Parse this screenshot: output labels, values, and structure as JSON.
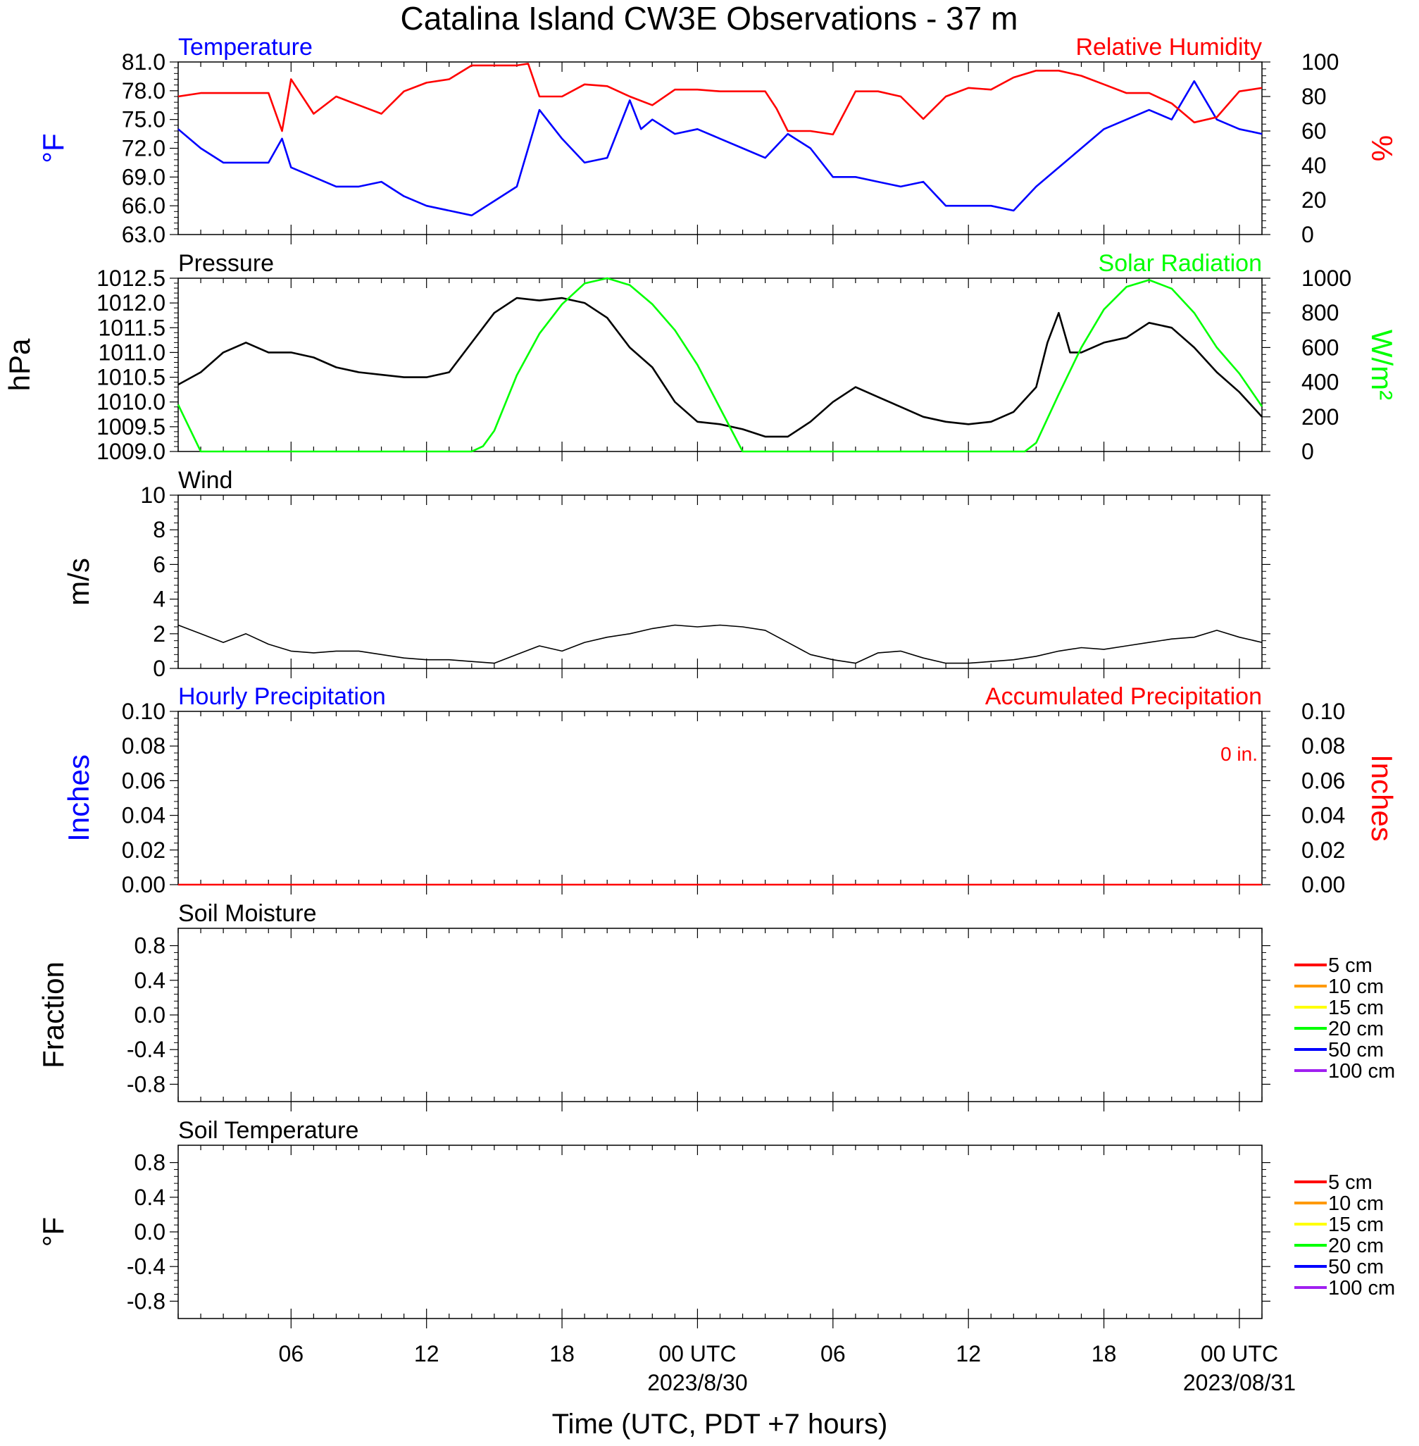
{
  "page_title": "Catalina Island CW3E Observations - 37 m",
  "x_axis": {
    "label": "Time (UTC, PDT +7 hours)",
    "tick_labels": [
      "06",
      "12",
      "18",
      "00 UTC",
      "06",
      "12",
      "18",
      "00 UTC"
    ],
    "tick_hours": [
      6,
      12,
      18,
      24,
      30,
      36,
      42,
      48
    ],
    "date_labels": [
      {
        "hour": 24,
        "text": "2023/8/30"
      },
      {
        "hour": 48,
        "text": "2023/08/31"
      }
    ],
    "range_hours": [
      1,
      49
    ],
    "start_time_utc": "2023-08-29 01:00"
  },
  "colors": {
    "blue": "#0000ff",
    "red": "#ff0000",
    "green": "#00ff00",
    "black": "#000000",
    "orange": "#ff9900",
    "yellow": "#ffff00",
    "purple": "#a020f0"
  },
  "chart_data": [
    {
      "type": "line",
      "id": "temperature-humidity",
      "title_left": "Temperature",
      "title_right": "Relative Humidity",
      "ylabel_left": "°F",
      "ylabel_right": "%",
      "ylim_left": [
        63,
        81
      ],
      "ylim_right": [
        0,
        100
      ],
      "yticks_left": [
        "81.0",
        "78.0",
        "75.0",
        "72.0",
        "69.0",
        "66.0",
        "63.0"
      ],
      "yticks_right": [
        "100",
        "80",
        "60",
        "40",
        "20",
        "0"
      ],
      "series": [
        {
          "name": "Temperature",
          "axis": "left",
          "color": "#0000ff",
          "x": [
            1,
            2,
            3,
            4,
            5,
            5.6,
            6,
            7,
            8,
            9,
            10,
            11,
            12,
            13,
            14,
            15,
            16,
            16.5,
            17,
            18,
            19,
            20,
            21,
            21.5,
            22,
            23,
            24,
            25,
            26,
            27,
            28,
            29,
            30,
            31,
            32,
            33,
            34,
            35,
            36,
            37,
            38,
            39,
            40,
            41,
            42,
            43,
            44,
            45,
            46,
            47,
            48,
            49
          ],
          "y": [
            74,
            72,
            70.5,
            70.5,
            70.5,
            73,
            70,
            69,
            68,
            68,
            68.5,
            67,
            66,
            65.5,
            65,
            66.5,
            68,
            72,
            76,
            73,
            70.5,
            71,
            77,
            74,
            75,
            73.5,
            74,
            73,
            72,
            71,
            73.5,
            72,
            69,
            69,
            68.5,
            68,
            68.5,
            66,
            66,
            66,
            65.5,
            68,
            70,
            72,
            74,
            75,
            76,
            75,
            79,
            75,
            74,
            73.5
          ]
        },
        {
          "name": "Relative Humidity",
          "axis": "right",
          "color": "#ff0000",
          "x": [
            1,
            2,
            3,
            4,
            5,
            5.6,
            6,
            7,
            8,
            9,
            10,
            11,
            12,
            13,
            14,
            15,
            16,
            16.5,
            17,
            18,
            19,
            20,
            21,
            22,
            23,
            24,
            25,
            26,
            27,
            27.5,
            28,
            29,
            30,
            31,
            32,
            33,
            34,
            35,
            36,
            37,
            38,
            39,
            40,
            41,
            42,
            43,
            44,
            45,
            46,
            47,
            48,
            49
          ],
          "y": [
            80,
            82,
            82,
            82,
            82,
            60,
            90,
            70,
            80,
            75,
            70,
            83,
            88,
            90,
            98,
            98,
            98,
            99,
            80,
            80,
            87,
            86,
            80,
            75,
            84,
            84,
            83,
            83,
            83,
            73,
            60,
            60,
            58,
            83,
            83,
            80,
            67,
            80,
            85,
            84,
            91,
            95,
            95,
            92,
            87,
            82,
            82,
            76,
            65,
            68,
            83,
            85
          ]
        }
      ]
    },
    {
      "type": "line",
      "id": "pressure-solar",
      "title_left": "Pressure",
      "title_right": "Solar Radiation",
      "ylabel_left": "hPa",
      "ylabel_right": "W/m²",
      "ylim_left": [
        1009,
        1012.5
      ],
      "ylim_right": [
        0,
        1000
      ],
      "yticks_left": [
        "1012.5",
        "1012.0",
        "1011.5",
        "1011.0",
        "1010.5",
        "1010.0",
        "1009.5",
        "1009.0"
      ],
      "yticks_right": [
        "1000",
        "800",
        "600",
        "400",
        "200",
        "0"
      ],
      "series": [
        {
          "name": "Pressure",
          "axis": "left",
          "color": "#000000",
          "x": [
            1,
            2,
            3,
            4,
            5,
            6,
            7,
            8,
            9,
            10,
            11,
            12,
            13,
            14,
            15,
            16,
            17,
            18,
            19,
            20,
            21,
            22,
            23,
            24,
            25,
            26,
            27,
            28,
            29,
            30,
            31,
            32,
            33,
            34,
            35,
            36,
            37,
            38,
            39,
            39.5,
            40,
            40.5,
            41,
            42,
            43,
            44,
            45,
            46,
            47,
            48,
            49
          ],
          "y": [
            1010.35,
            1010.6,
            1011.0,
            1011.2,
            1011.0,
            1011.0,
            1010.9,
            1010.7,
            1010.6,
            1010.55,
            1010.5,
            1010.5,
            1010.6,
            1011.2,
            1011.8,
            1012.1,
            1012.05,
            1012.1,
            1012.0,
            1011.7,
            1011.1,
            1010.7,
            1010.0,
            1009.6,
            1009.55,
            1009.45,
            1009.3,
            1009.3,
            1009.6,
            1010.0,
            1010.3,
            1010.1,
            1009.9,
            1009.7,
            1009.6,
            1009.55,
            1009.6,
            1009.8,
            1010.3,
            1011.2,
            1011.8,
            1011.0,
            1011.0,
            1011.2,
            1011.3,
            1011.6,
            1011.5,
            1011.1,
            1010.6,
            1010.2,
            1009.7
          ]
        },
        {
          "name": "Solar Radiation",
          "axis": "right",
          "color": "#00ff00",
          "x": [
            1,
            2,
            3,
            4,
            5,
            6,
            7,
            8,
            9,
            10,
            11,
            12,
            13,
            14,
            14.5,
            15,
            16,
            17,
            18,
            19,
            20,
            21,
            22,
            23,
            24,
            25,
            26,
            27,
            28,
            29,
            30,
            31,
            32,
            33,
            34,
            35,
            36,
            37,
            38,
            38.5,
            39,
            40,
            41,
            42,
            43,
            44,
            45,
            46,
            47,
            48,
            49
          ],
          "y": [
            270,
            0,
            0,
            0,
            0,
            0,
            0,
            0,
            0,
            0,
            0,
            0,
            0,
            0,
            30,
            120,
            440,
            680,
            850,
            970,
            1000,
            960,
            850,
            700,
            500,
            250,
            0,
            0,
            0,
            0,
            0,
            0,
            0,
            0,
            0,
            0,
            0,
            0,
            0,
            0,
            50,
            330,
            600,
            820,
            950,
            990,
            940,
            800,
            600,
            450,
            260
          ]
        }
      ]
    },
    {
      "type": "line",
      "id": "wind",
      "title_left": "Wind",
      "ylabel_left": "m/s",
      "ylim_left": [
        0,
        10
      ],
      "yticks_left": [
        "10",
        "8",
        "6",
        "4",
        "2",
        "0"
      ],
      "series": [
        {
          "name": "Wind",
          "axis": "left",
          "color": "#000000",
          "x": [
            1,
            2,
            3,
            4,
            5,
            6,
            7,
            8,
            9,
            10,
            11,
            12,
            13,
            14,
            15,
            16,
            17,
            18,
            19,
            20,
            21,
            22,
            23,
            24,
            25,
            26,
            27,
            28,
            29,
            30,
            31,
            32,
            33,
            34,
            35,
            36,
            37,
            38,
            39,
            40,
            41,
            42,
            43,
            44,
            45,
            46,
            47,
            48,
            49
          ],
          "y": [
            2.5,
            2.0,
            1.5,
            2.0,
            1.4,
            1.0,
            0.9,
            1.0,
            1.0,
            0.8,
            0.6,
            0.5,
            0.5,
            0.4,
            0.3,
            0.8,
            1.3,
            1.0,
            1.5,
            1.8,
            2.0,
            2.3,
            2.5,
            2.4,
            2.5,
            2.4,
            2.2,
            1.5,
            0.8,
            0.5,
            0.3,
            0.9,
            1.0,
            0.6,
            0.3,
            0.3,
            0.4,
            0.5,
            0.7,
            1.0,
            1.2,
            1.1,
            1.3,
            1.5,
            1.7,
            1.8,
            2.2,
            1.8,
            1.5
          ]
        }
      ]
    },
    {
      "type": "line",
      "id": "precipitation",
      "title_left": "Hourly Precipitation",
      "title_right": "Accumulated Precipitation",
      "annotation": "0 in.",
      "ylabel_left": "Inches",
      "ylabel_right": "Inches",
      "ylim_left": [
        0,
        0.1
      ],
      "ylim_right": [
        0,
        0.1
      ],
      "yticks_left": [
        "0.10",
        "0.08",
        "0.06",
        "0.04",
        "0.02",
        "0.00"
      ],
      "yticks_right": [
        "0.10",
        "0.08",
        "0.06",
        "0.04",
        "0.02",
        "0.00"
      ],
      "series": [
        {
          "name": "Accumulated Precipitation",
          "axis": "right",
          "color": "#ff0000",
          "x": [
            1,
            49
          ],
          "y": [
            0,
            0
          ]
        }
      ]
    },
    {
      "type": "line",
      "id": "soil-moisture",
      "title_left": "Soil Moisture",
      "ylabel_left": "Fraction",
      "ylim_left": [
        -1,
        1
      ],
      "yticks_left": [
        "0.8",
        "0.4",
        "0.0",
        "-0.4",
        "-0.8"
      ],
      "legend": [
        {
          "label": "5 cm",
          "color": "#ff0000"
        },
        {
          "label": "10 cm",
          "color": "#ff9900"
        },
        {
          "label": "15 cm",
          "color": "#ffff00"
        },
        {
          "label": "20 cm",
          "color": "#00ff00"
        },
        {
          "label": "50 cm",
          "color": "#0000ff"
        },
        {
          "label": "100 cm",
          "color": "#a020f0"
        }
      ],
      "legend_placement": "right",
      "series": []
    },
    {
      "type": "line",
      "id": "soil-temperature",
      "title_left": "Soil Temperature",
      "ylabel_left": "°F",
      "ylim_left": [
        -1,
        1
      ],
      "yticks_left": [
        "0.8",
        "0.4",
        "0.0",
        "-0.4",
        "-0.8"
      ],
      "legend": [
        {
          "label": "5 cm",
          "color": "#ff0000"
        },
        {
          "label": "10 cm",
          "color": "#ff9900"
        },
        {
          "label": "15 cm",
          "color": "#ffff00"
        },
        {
          "label": "20 cm",
          "color": "#00ff00"
        },
        {
          "label": "50 cm",
          "color": "#0000ff"
        },
        {
          "label": "100 cm",
          "color": "#a020f0"
        }
      ],
      "legend_placement": "right",
      "series": []
    }
  ]
}
